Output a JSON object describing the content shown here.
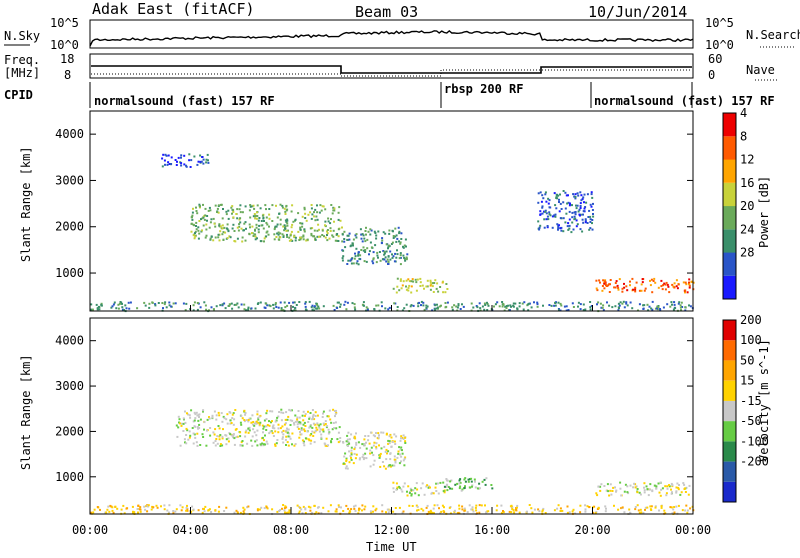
{
  "header": {
    "station": "Adak East (fitACF)",
    "beam": "Beam 03",
    "date": "10/Jun/2014"
  },
  "top_panels": {
    "nsky_label": "N.Sky",
    "nsky_ticks": [
      "10^5",
      "10^0"
    ],
    "nsearch_label": "N.Search",
    "nsearch_ticks": [
      "10^5",
      "10^0"
    ],
    "freq_label": "Freq.",
    "freq_unit": "[MHz]",
    "freq_ticks": [
      "18",
      "8"
    ],
    "nave_label": "Nave",
    "nave_ticks": [
      "60",
      "0"
    ],
    "cpid_label": "CPID",
    "cpid_segments": [
      {
        "label": "normalsound (fast) 157 RF",
        "start_h": 0,
        "end_h": 14
      },
      {
        "label": "rbsp 200 RF",
        "start_h": 14,
        "end_h": 20
      },
      {
        "label": "normalsound (fast) 157 RF",
        "start_h": 20,
        "end_h": 24
      }
    ]
  },
  "chart_data": [
    {
      "type": "heatmap",
      "quantity": "Power",
      "ylabel": "Slant Range [km]",
      "ylim": [
        180,
        4500
      ],
      "y_ticks": [
        1000,
        2000,
        3000,
        4000
      ],
      "colorbar_label": "Power [dB]",
      "colorbar_ticks": [
        "4",
        "8",
        "12",
        "16",
        "20",
        "24",
        "28"
      ],
      "colors": [
        "#1a1aff",
        "#2a55c8",
        "#3a8f6a",
        "#6aaa5a",
        "#c8d23a",
        "#ffa500",
        "#ff5a00",
        "#ee0000"
      ],
      "regions": [
        {
          "x": [
            4.0,
            10.0
          ],
          "y": [
            1700,
            2500
          ],
          "level": 3
        },
        {
          "x": [
            10.0,
            12.6
          ],
          "y": [
            1200,
            2000
          ],
          "level": 2
        },
        {
          "x": [
            2.8,
            4.7
          ],
          "y": [
            3300,
            3600
          ],
          "level": 1
        },
        {
          "x": [
            12.0,
            14.2
          ],
          "y": [
            600,
            900
          ],
          "level": 4
        },
        {
          "x": [
            17.8,
            20.0
          ],
          "y": [
            1900,
            2800
          ],
          "level": 1
        },
        {
          "x": [
            20.0,
            24.0
          ],
          "y": [
            600,
            900
          ],
          "level": 6
        },
        {
          "x": [
            0.0,
            24.0
          ],
          "y": [
            200,
            400
          ],
          "level": 2
        }
      ]
    },
    {
      "type": "heatmap",
      "quantity": "Velocity",
      "ylabel": "Slant Range [km]",
      "ylim": [
        180,
        4500
      ],
      "y_ticks": [
        1000,
        2000,
        3000,
        4000
      ],
      "xlabel": "Time UT",
      "x_ticks": [
        "00:00",
        "04:00",
        "08:00",
        "12:00",
        "16:00",
        "20:00",
        "00:00"
      ],
      "xlim_hours": [
        0,
        24
      ],
      "colorbar_label": "Velocity [m s^-1]",
      "colorbar_ticks": [
        "200",
        "100",
        "50",
        "15",
        "-15",
        "-50",
        "-100",
        "-200"
      ],
      "colors": [
        "#1a2acc",
        "#2a5aa8",
        "#2a8a4a",
        "#66cc44",
        "#c8c8c8",
        "#ffd200",
        "#ffa500",
        "#ff6a00",
        "#e00000"
      ],
      "regions": [
        {
          "x": [
            3.4,
            10.0
          ],
          "y": [
            1700,
            2500
          ],
          "level": 4
        },
        {
          "x": [
            10.0,
            12.6
          ],
          "y": [
            1200,
            2000
          ],
          "level": 4
        },
        {
          "x": [
            12.0,
            14.2
          ],
          "y": [
            600,
            900
          ],
          "level": 4
        },
        {
          "x": [
            14.0,
            16.0
          ],
          "y": [
            700,
            1000
          ],
          "level": 3
        },
        {
          "x": [
            20.0,
            24.0
          ],
          "y": [
            600,
            900
          ],
          "level": 4
        },
        {
          "x": [
            0.0,
            24.0
          ],
          "y": [
            200,
            400
          ],
          "level": 5
        }
      ]
    }
  ]
}
